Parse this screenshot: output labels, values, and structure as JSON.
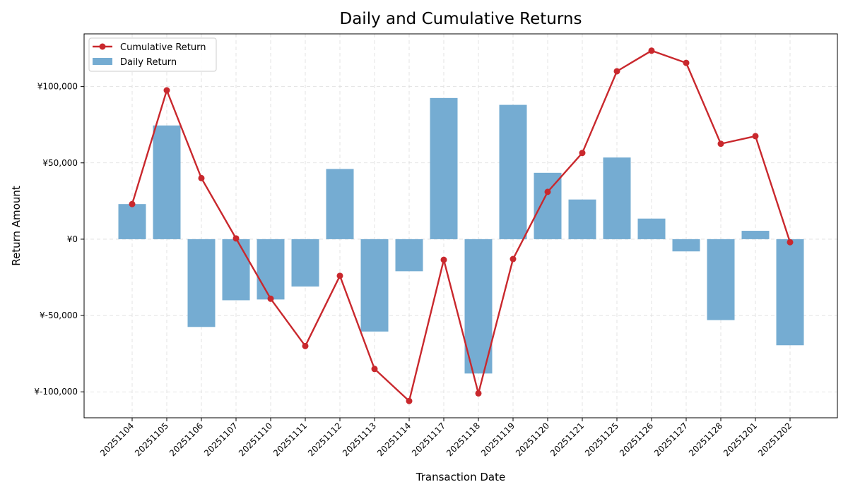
{
  "chart_data": {
    "type": "bar+line",
    "title": "Daily and Cumulative Returns",
    "xlabel": "Transaction Date",
    "ylabel": "Return Amount",
    "categories": [
      "20251104",
      "20251105",
      "20251106",
      "20251107",
      "20251110",
      "20251111",
      "20251112",
      "20251113",
      "20251114",
      "20251117",
      "20251118",
      "20251119",
      "20251120",
      "20251121",
      "20251125",
      "20251126",
      "20251127",
      "20251128",
      "20251201",
      "20251202"
    ],
    "series": [
      {
        "name": "Daily Return",
        "kind": "bar",
        "color": "#75acd2",
        "values": [
          23000,
          74500,
          -57500,
          -40000,
          -39500,
          -31000,
          46000,
          -60500,
          -21000,
          92500,
          -88000,
          88000,
          43500,
          26000,
          53500,
          13500,
          -8000,
          -53000,
          5500,
          -69500
        ]
      },
      {
        "name": "Cumulative Return",
        "kind": "line",
        "color": "#c9282d",
        "values": [
          23000,
          97500,
          40000,
          500,
          -39000,
          -70000,
          -24000,
          -85000,
          -106000,
          -13500,
          -101000,
          -13000,
          31000,
          56500,
          110000,
          123500,
          115500,
          62500,
          67500,
          -2000
        ]
      }
    ],
    "ylim": [
      -117000,
      134500
    ],
    "yticks": [
      -100000,
      -50000,
      0,
      50000,
      100000
    ],
    "ytick_labels": [
      "¥-100,000",
      "¥-50,000",
      "¥0",
      "¥50,000",
      "¥100,000"
    ],
    "grid": true,
    "legend_position": "top-left"
  }
}
